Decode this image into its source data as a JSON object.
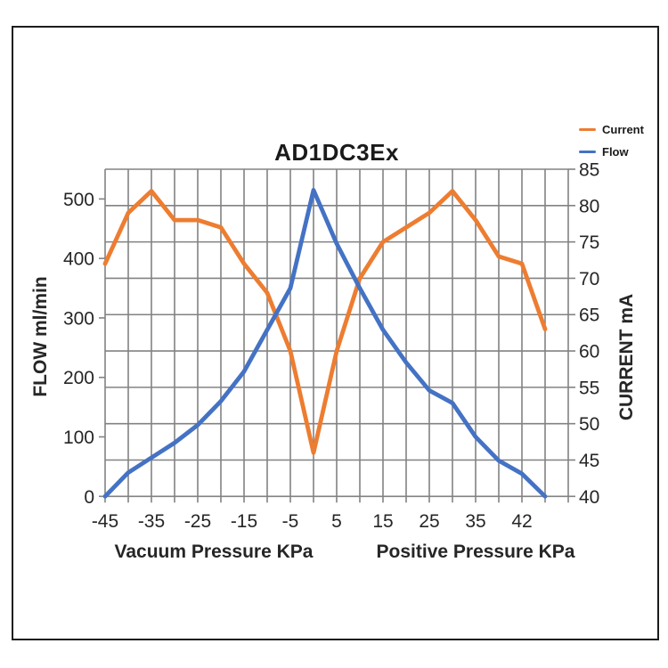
{
  "title": "AD1DC3Ex",
  "legend": {
    "items": [
      {
        "label": "Current",
        "color": "#ED7D31"
      },
      {
        "label": "Flow",
        "color": "#4472C4"
      }
    ]
  },
  "axes": {
    "left": {
      "title": "FLOW ml/min",
      "ticks": [
        "0",
        "100",
        "200",
        "300",
        "400",
        "500"
      ]
    },
    "right": {
      "title": "CURRENT mA",
      "ticks": [
        "40",
        "45",
        "50",
        "55",
        "60",
        "65",
        "70",
        "75",
        "80",
        "85"
      ]
    },
    "bottom": {
      "title_left": "Vacuum Pressure KPa",
      "title_right": "Positive Pressure KPa",
      "tick_labels": [
        "-45",
        "-35",
        "-25",
        "-15",
        "-5",
        "5",
        "15",
        "25",
        "35",
        "42"
      ]
    }
  },
  "chart_data": {
    "type": "line",
    "title": "AD1DC3Ex",
    "grid": true,
    "legend_position": "top-right",
    "categories": [
      "-45",
      "-40",
      "-35",
      "-30",
      "-25",
      "-20",
      "-15",
      "-10",
      "-5",
      "0",
      "5",
      "10",
      "15",
      "20",
      "25",
      "30",
      "35",
      "40",
      "42",
      ""
    ],
    "x_tick_labels_shown": [
      "-45",
      "-35",
      "-25",
      "-15",
      "-5",
      "5",
      "15",
      "25",
      "35",
      "42"
    ],
    "xlabel_left_half": "Vacuum Pressure KPa",
    "xlabel_right_half": "Positive Pressure KPa",
    "left_axis_label": "FLOW ml/min",
    "right_axis_label": "CURRENT mA",
    "left_axis_range": [
      0,
      550
    ],
    "right_axis_range": [
      40,
      85
    ],
    "series": [
      {
        "name": "Current",
        "axis": "right",
        "unit": "mA",
        "color": "#ED7D31",
        "values": [
          72,
          79,
          82,
          78,
          78,
          77,
          72,
          68,
          60,
          46,
          60,
          70,
          75,
          77,
          79,
          82,
          78,
          73,
          72,
          63
        ]
      },
      {
        "name": "Flow",
        "axis": "left",
        "unit": "ml/min",
        "color": "#4472C4",
        "values": [
          0,
          40,
          65,
          90,
          120,
          160,
          210,
          280,
          350,
          515,
          425,
          350,
          280,
          225,
          178,
          157,
          100,
          60,
          38,
          0
        ]
      }
    ],
    "grid_color": "#828282"
  }
}
